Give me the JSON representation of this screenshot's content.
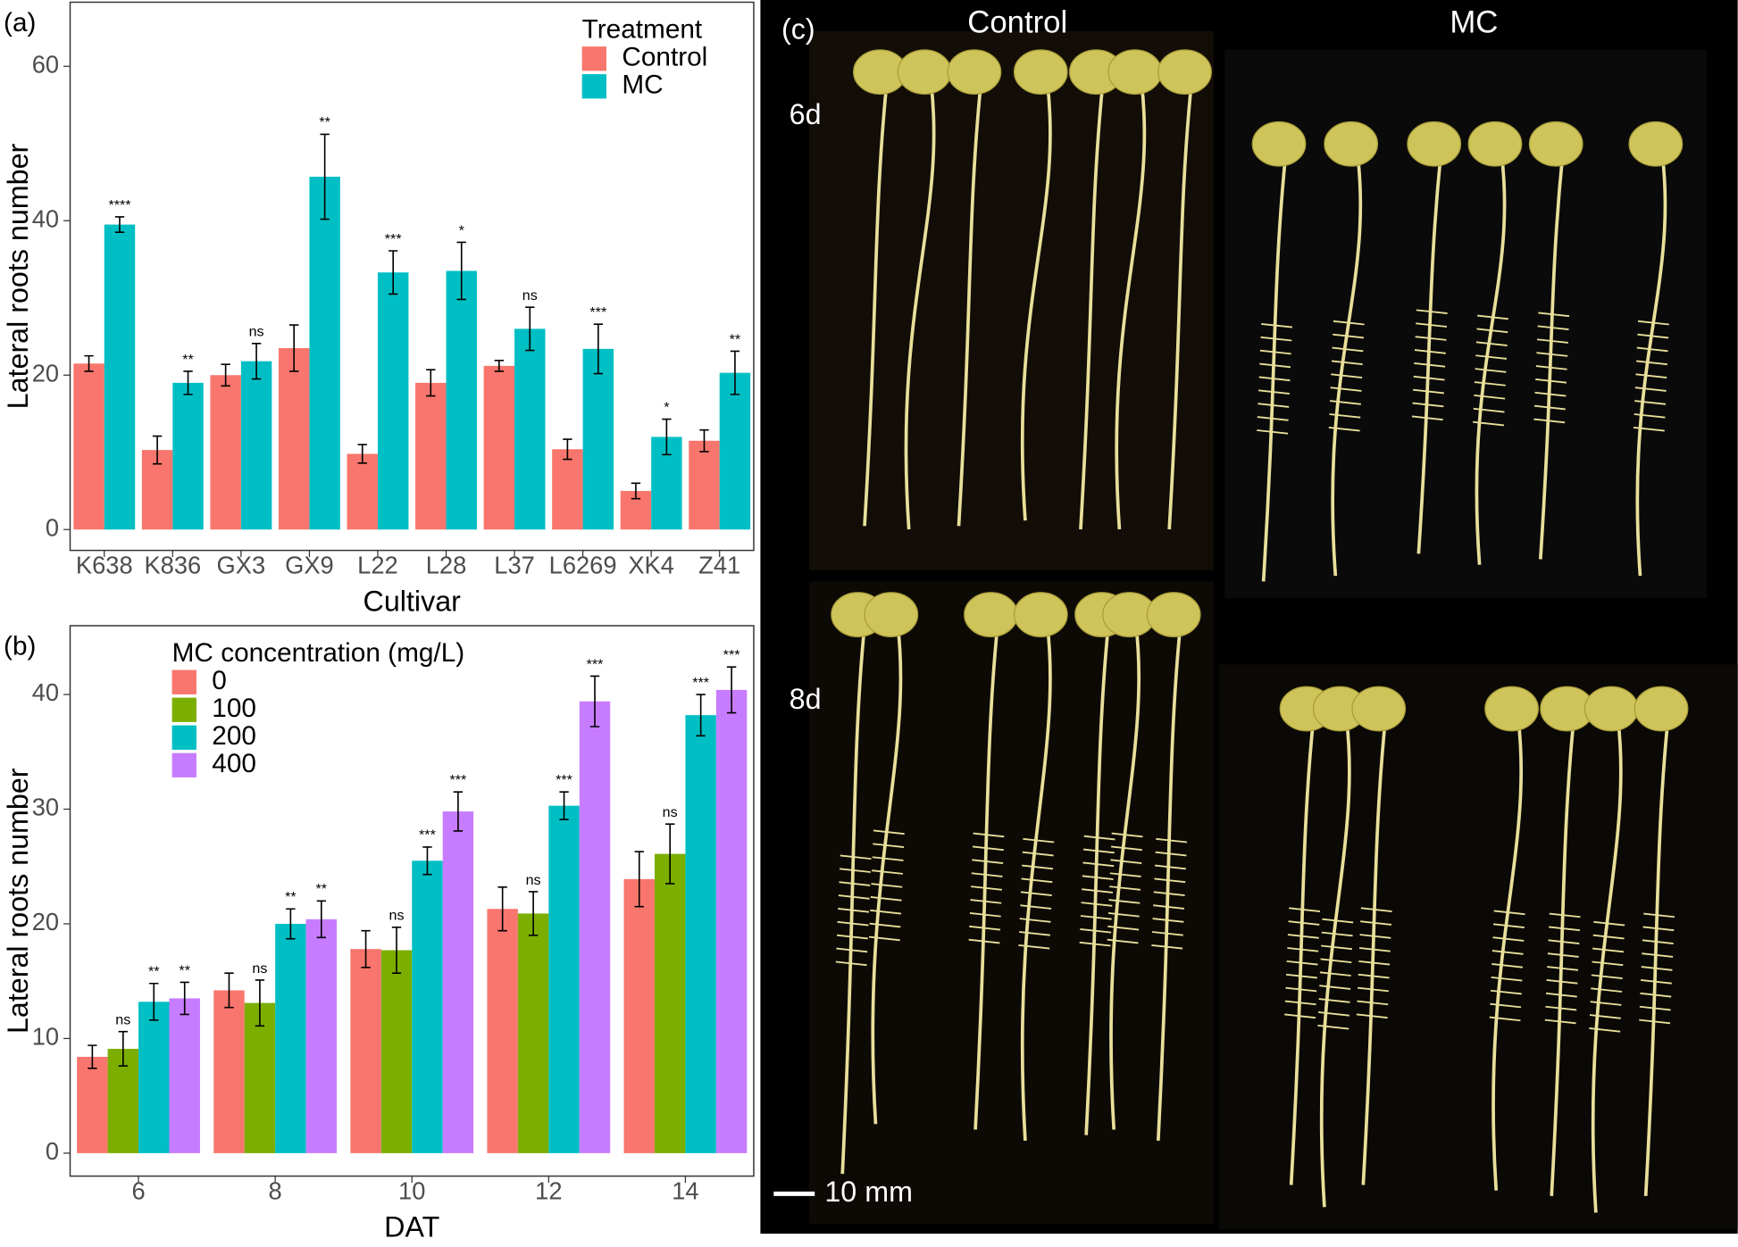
{
  "chart_data": [
    {
      "type": "bar",
      "panel_label": "(a)",
      "x_label": "Cultivar",
      "y_label": "Lateral roots number",
      "categories": [
        "K638",
        "K836",
        "GX3",
        "GX9",
        "L22",
        "L28",
        "L37",
        "L6269",
        "XK4",
        "Z41"
      ],
      "legend_title": "Treatment",
      "legend": "top-right",
      "series": [
        {
          "name": "Control",
          "color": "#F8766D",
          "values": [
            21.5,
            10.3,
            20,
            23.5,
            9.8,
            19,
            21.2,
            10.4,
            5,
            11.5
          ],
          "errors": [
            1,
            1.8,
            1.4,
            3,
            1.2,
            1.7,
            0.7,
            1.3,
            1,
            1.4
          ],
          "annotations": [
            null,
            null,
            null,
            null,
            null,
            null,
            null,
            null,
            null,
            null
          ]
        },
        {
          "name": "MC",
          "color": "#00BFC4",
          "values": [
            39.5,
            19,
            21.8,
            45.7,
            33.3,
            33.5,
            26,
            23.4,
            12,
            20.3
          ],
          "errors": [
            1,
            1.5,
            2.3,
            5.5,
            2.8,
            3.7,
            2.8,
            3.2,
            2.3,
            2.8
          ],
          "annotations": [
            "****",
            "**",
            "ns",
            "**",
            "***",
            "*",
            "ns",
            "***",
            "*",
            "**"
          ]
        }
      ],
      "ylim": [
        -2.7,
        68.3
      ],
      "yticks": [
        0,
        20,
        40,
        60
      ],
      "grid": false
    },
    {
      "type": "bar",
      "panel_label": "(b)",
      "x_label": "DAT",
      "y_label": "Lateral roots number",
      "categories": [
        "6",
        "8",
        "10",
        "12",
        "14"
      ],
      "legend_title": "MC concentration (mg/L)",
      "legend": "top-left",
      "series": [
        {
          "name": "0",
          "color": "#F8766D",
          "values": [
            8.4,
            14.2,
            17.8,
            21.3,
            23.9
          ],
          "errors": [
            1,
            1.5,
            1.6,
            1.9,
            2.4
          ],
          "annotations": [
            null,
            null,
            null,
            null,
            null
          ]
        },
        {
          "name": "100",
          "color": "#7CAE00",
          "values": [
            9.1,
            13.1,
            17.7,
            20.9,
            26.1
          ],
          "errors": [
            1.5,
            2,
            2,
            1.9,
            2.6
          ],
          "annotations": [
            "ns",
            "ns",
            "ns",
            "ns",
            "ns"
          ]
        },
        {
          "name": "200",
          "color": "#00BFC4",
          "values": [
            13.2,
            20,
            25.5,
            30.3,
            38.2
          ],
          "errors": [
            1.6,
            1.3,
            1.2,
            1.2,
            1.8
          ],
          "annotations": [
            "**",
            "**",
            "***",
            "***",
            "***"
          ]
        },
        {
          "name": "400",
          "color": "#C77CFF",
          "values": [
            13.5,
            20.4,
            29.8,
            39.4,
            40.4
          ],
          "errors": [
            1.4,
            1.6,
            1.7,
            2.2,
            2
          ],
          "annotations": [
            "**",
            "**",
            "***",
            "***",
            "***"
          ]
        }
      ],
      "ylim": [
        -2,
        46
      ],
      "yticks": [
        0,
        10,
        20,
        30,
        40
      ],
      "grid": false
    }
  ],
  "photo_panel": {
    "label": "(c)",
    "columns": [
      "Control",
      "MC"
    ],
    "rows": [
      "6d",
      "8d"
    ],
    "scale_bar": "10 mm"
  }
}
